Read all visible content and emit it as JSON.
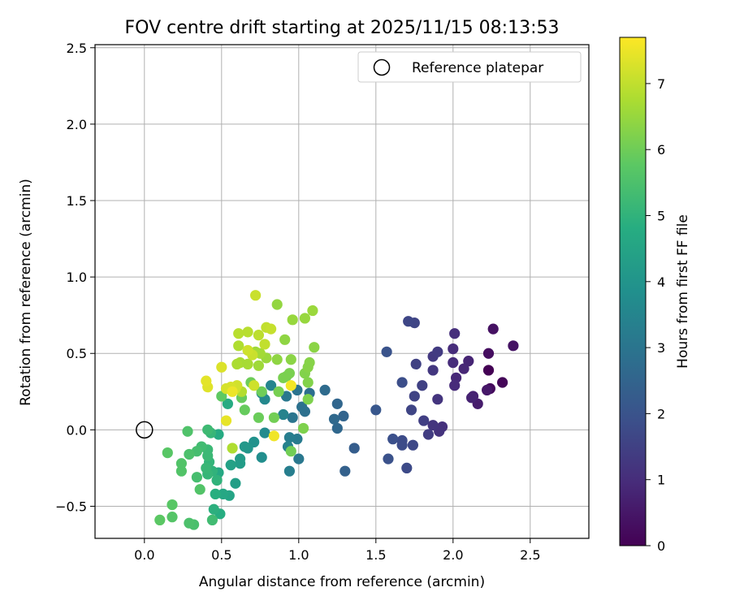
{
  "chart_data": {
    "type": "scatter",
    "title": "FOV centre drift starting at 2025/11/15 08:13:53",
    "xlabel": "Angular distance from reference (arcmin)",
    "ylabel": "Rotation from reference (arcmin)",
    "xlim": [
      -0.32,
      2.88
    ],
    "ylim": [
      -0.71,
      2.52
    ],
    "xticks": [
      0.0,
      0.5,
      1.0,
      1.5,
      2.0,
      2.5
    ],
    "xtick_labels": [
      "0.0",
      "0.5",
      "1.0",
      "1.5",
      "2.0",
      "2.5"
    ],
    "yticks": [
      -0.5,
      0.0,
      0.5,
      1.0,
      1.5,
      2.0,
      2.5
    ],
    "ytick_labels": [
      "−0.5",
      "0.0",
      "0.5",
      "1.0",
      "1.5",
      "2.0",
      "2.5"
    ],
    "grid": true,
    "legend": {
      "position": "top-right",
      "entries": [
        "Reference platepar"
      ]
    },
    "reference_point": {
      "x": 0.0,
      "y": 0.0,
      "label": "Reference platepar"
    },
    "colorbar": {
      "label": "Hours from first FF file",
      "range": [
        0,
        7.7
      ],
      "ticks": [
        0,
        1,
        2,
        3,
        4,
        5,
        6,
        7
      ],
      "tick_labels": [
        "0",
        "1",
        "2",
        "3",
        "4",
        "5",
        "6",
        "7"
      ],
      "colormap": "viridis"
    },
    "points": [
      {
        "x": 2.23,
        "y": 0.39,
        "h": 0.0
      },
      {
        "x": 2.32,
        "y": 0.31,
        "h": 0.1
      },
      {
        "x": 2.24,
        "y": 0.27,
        "h": 0.2
      },
      {
        "x": 2.23,
        "y": 0.5,
        "h": 0.3
      },
      {
        "x": 2.26,
        "y": 0.66,
        "h": 0.35
      },
      {
        "x": 2.39,
        "y": 0.55,
        "h": 0.4
      },
      {
        "x": 2.22,
        "y": 0.26,
        "h": 0.5
      },
      {
        "x": 2.16,
        "y": 0.17,
        "h": 0.6
      },
      {
        "x": 2.13,
        "y": 0.22,
        "h": 0.7
      },
      {
        "x": 2.12,
        "y": 0.21,
        "h": 0.75
      },
      {
        "x": 2.1,
        "y": 0.45,
        "h": 0.8
      },
      {
        "x": 2.07,
        "y": 0.4,
        "h": 0.85
      },
      {
        "x": 2.02,
        "y": 0.34,
        "h": 0.9
      },
      {
        "x": 2.01,
        "y": 0.29,
        "h": 0.95
      },
      {
        "x": 2.0,
        "y": 0.44,
        "h": 1.0
      },
      {
        "x": 2.0,
        "y": 0.53,
        "h": 1.0
      },
      {
        "x": 2.01,
        "y": 0.63,
        "h": 1.05
      },
      {
        "x": 1.93,
        "y": 0.02,
        "h": 1.1
      },
      {
        "x": 1.91,
        "y": -0.01,
        "h": 1.15
      },
      {
        "x": 1.87,
        "y": 0.03,
        "h": 1.2
      },
      {
        "x": 1.9,
        "y": 0.2,
        "h": 1.2
      },
      {
        "x": 1.87,
        "y": 0.39,
        "h": 1.25
      },
      {
        "x": 1.87,
        "y": 0.48,
        "h": 1.3
      },
      {
        "x": 1.9,
        "y": 0.51,
        "h": 1.35
      },
      {
        "x": 1.84,
        "y": -0.03,
        "h": 1.4
      },
      {
        "x": 1.81,
        "y": 0.06,
        "h": 1.45
      },
      {
        "x": 1.8,
        "y": 0.29,
        "h": 1.5
      },
      {
        "x": 1.76,
        "y": 0.43,
        "h": 1.5
      },
      {
        "x": 1.75,
        "y": 0.22,
        "h": 1.55
      },
      {
        "x": 1.73,
        "y": 0.13,
        "h": 1.6
      },
      {
        "x": 1.75,
        "y": 0.7,
        "h": 1.6
      },
      {
        "x": 1.71,
        "y": 0.71,
        "h": 1.65
      },
      {
        "x": 1.74,
        "y": -0.1,
        "h": 1.7
      },
      {
        "x": 1.7,
        "y": -0.25,
        "h": 1.75
      },
      {
        "x": 1.67,
        "y": -0.07,
        "h": 1.8
      },
      {
        "x": 1.67,
        "y": -0.1,
        "h": 1.8
      },
      {
        "x": 1.67,
        "y": 0.31,
        "h": 1.85
      },
      {
        "x": 1.61,
        "y": -0.06,
        "h": 1.9
      },
      {
        "x": 1.58,
        "y": -0.19,
        "h": 1.95
      },
      {
        "x": 1.57,
        "y": 0.51,
        "h": 2.0
      },
      {
        "x": 1.5,
        "y": 0.13,
        "h": 2.1
      },
      {
        "x": 1.36,
        "y": -0.12,
        "h": 2.3
      },
      {
        "x": 1.3,
        "y": -0.27,
        "h": 2.4
      },
      {
        "x": 1.29,
        "y": 0.09,
        "h": 2.5
      },
      {
        "x": 1.25,
        "y": 0.17,
        "h": 2.55
      },
      {
        "x": 1.25,
        "y": 0.01,
        "h": 2.6
      },
      {
        "x": 1.23,
        "y": 0.07,
        "h": 2.65
      },
      {
        "x": 1.17,
        "y": 0.26,
        "h": 2.7
      },
      {
        "x": 1.07,
        "y": 0.24,
        "h": 2.8
      },
      {
        "x": 1.04,
        "y": 0.12,
        "h": 2.85
      },
      {
        "x": 1.02,
        "y": 0.15,
        "h": 2.9
      },
      {
        "x": 0.99,
        "y": 0.26,
        "h": 2.95
      },
      {
        "x": 0.96,
        "y": 0.08,
        "h": 3.0
      },
      {
        "x": 0.92,
        "y": 0.22,
        "h": 3.1
      },
      {
        "x": 1.0,
        "y": -0.19,
        "h": 3.1
      },
      {
        "x": 0.99,
        "y": -0.06,
        "h": 3.2
      },
      {
        "x": 0.94,
        "y": -0.27,
        "h": 3.3
      },
      {
        "x": 0.94,
        "y": -0.05,
        "h": 3.3
      },
      {
        "x": 0.93,
        "y": -0.11,
        "h": 3.4
      },
      {
        "x": 0.9,
        "y": 0.1,
        "h": 3.45
      },
      {
        "x": 0.82,
        "y": 0.29,
        "h": 3.5
      },
      {
        "x": 0.78,
        "y": 0.2,
        "h": 3.6
      },
      {
        "x": 0.76,
        "y": 0.24,
        "h": 3.65
      },
      {
        "x": 0.78,
        "y": -0.02,
        "h": 3.7
      },
      {
        "x": 0.76,
        "y": -0.18,
        "h": 3.8
      },
      {
        "x": 0.71,
        "y": -0.08,
        "h": 3.9
      },
      {
        "x": 0.67,
        "y": -0.12,
        "h": 4.0
      },
      {
        "x": 0.65,
        "y": -0.11,
        "h": 4.1
      },
      {
        "x": 0.62,
        "y": -0.19,
        "h": 4.2
      },
      {
        "x": 0.62,
        "y": -0.22,
        "h": 4.25
      },
      {
        "x": 0.59,
        "y": -0.35,
        "h": 4.3
      },
      {
        "x": 0.56,
        "y": -0.23,
        "h": 4.4
      },
      {
        "x": 0.55,
        "y": -0.43,
        "h": 4.5
      },
      {
        "x": 0.51,
        "y": -0.42,
        "h": 4.6
      },
      {
        "x": 0.48,
        "y": -0.28,
        "h": 4.65
      },
      {
        "x": 0.48,
        "y": -0.03,
        "h": 4.7
      },
      {
        "x": 0.54,
        "y": 0.17,
        "h": 4.75
      },
      {
        "x": 0.49,
        "y": -0.55,
        "h": 4.8
      },
      {
        "x": 0.46,
        "y": -0.42,
        "h": 4.85
      },
      {
        "x": 0.45,
        "y": -0.52,
        "h": 4.9
      },
      {
        "x": 0.47,
        "y": -0.33,
        "h": 5.0
      },
      {
        "x": 0.44,
        "y": -0.27,
        "h": 5.0
      },
      {
        "x": 0.42,
        "y": -0.21,
        "h": 5.05
      },
      {
        "x": 0.43,
        "y": -0.02,
        "h": 5.1
      },
      {
        "x": 0.41,
        "y": -0.29,
        "h": 5.1
      },
      {
        "x": 0.4,
        "y": -0.25,
        "h": 5.15
      },
      {
        "x": 0.41,
        "y": -0.13,
        "h": 5.2
      },
      {
        "x": 0.41,
        "y": -0.17,
        "h": 5.2
      },
      {
        "x": 0.41,
        "y": 0.0,
        "h": 5.25
      },
      {
        "x": 0.44,
        "y": -0.59,
        "h": 5.3
      },
      {
        "x": 0.37,
        "y": -0.11,
        "h": 5.3
      },
      {
        "x": 0.34,
        "y": -0.14,
        "h": 5.4
      },
      {
        "x": 0.34,
        "y": -0.31,
        "h": 5.4
      },
      {
        "x": 0.32,
        "y": -0.62,
        "h": 5.45
      },
      {
        "x": 0.29,
        "y": -0.61,
        "h": 5.5
      },
      {
        "x": 0.29,
        "y": -0.16,
        "h": 5.5
      },
      {
        "x": 0.28,
        "y": -0.01,
        "h": 5.55
      },
      {
        "x": 0.24,
        "y": -0.27,
        "h": 5.6
      },
      {
        "x": 0.24,
        "y": -0.22,
        "h": 5.6
      },
      {
        "x": 0.18,
        "y": -0.57,
        "h": 5.65
      },
      {
        "x": 0.18,
        "y": -0.49,
        "h": 5.7
      },
      {
        "x": 0.15,
        "y": -0.15,
        "h": 5.7
      },
      {
        "x": 0.1,
        "y": -0.59,
        "h": 5.75
      },
      {
        "x": 0.36,
        "y": -0.39,
        "h": 5.6
      },
      {
        "x": 0.5,
        "y": 0.22,
        "h": 5.8
      },
      {
        "x": 0.65,
        "y": 0.13,
        "h": 5.9
      },
      {
        "x": 0.63,
        "y": 0.21,
        "h": 5.9
      },
      {
        "x": 0.74,
        "y": 0.08,
        "h": 5.95
      },
      {
        "x": 0.69,
        "y": 0.31,
        "h": 6.0
      },
      {
        "x": 0.76,
        "y": 0.25,
        "h": 6.0
      },
      {
        "x": 0.84,
        "y": 0.08,
        "h": 6.05
      },
      {
        "x": 0.95,
        "y": -0.14,
        "h": 6.05
      },
      {
        "x": 0.87,
        "y": 0.25,
        "h": 6.1
      },
      {
        "x": 0.92,
        "y": 0.35,
        "h": 6.1
      },
      {
        "x": 0.94,
        "y": 0.37,
        "h": 6.15
      },
      {
        "x": 0.9,
        "y": 0.34,
        "h": 6.15
      },
      {
        "x": 1.03,
        "y": 0.01,
        "h": 6.2
      },
      {
        "x": 1.06,
        "y": 0.2,
        "h": 6.2
      },
      {
        "x": 1.06,
        "y": 0.31,
        "h": 6.25
      },
      {
        "x": 1.04,
        "y": 0.37,
        "h": 6.25
      },
      {
        "x": 1.06,
        "y": 0.41,
        "h": 6.3
      },
      {
        "x": 1.07,
        "y": 0.44,
        "h": 6.3
      },
      {
        "x": 1.1,
        "y": 0.54,
        "h": 6.35
      },
      {
        "x": 0.95,
        "y": 0.46,
        "h": 6.35
      },
      {
        "x": 0.91,
        "y": 0.59,
        "h": 6.4
      },
      {
        "x": 0.86,
        "y": 0.46,
        "h": 6.4
      },
      {
        "x": 0.86,
        "y": 0.82,
        "h": 6.45
      },
      {
        "x": 0.96,
        "y": 0.72,
        "h": 6.5
      },
      {
        "x": 1.04,
        "y": 0.73,
        "h": 6.5
      },
      {
        "x": 1.09,
        "y": 0.78,
        "h": 6.55
      },
      {
        "x": 0.79,
        "y": 0.47,
        "h": 6.55
      },
      {
        "x": 0.74,
        "y": 0.42,
        "h": 6.6
      },
      {
        "x": 0.72,
        "y": 0.51,
        "h": 6.6
      },
      {
        "x": 0.75,
        "y": 0.5,
        "h": 6.65
      },
      {
        "x": 0.67,
        "y": 0.43,
        "h": 6.7
      },
      {
        "x": 0.62,
        "y": 0.44,
        "h": 6.7
      },
      {
        "x": 0.6,
        "y": 0.43,
        "h": 6.75
      },
      {
        "x": 0.61,
        "y": 0.55,
        "h": 6.8
      },
      {
        "x": 0.57,
        "y": -0.12,
        "h": 6.8
      },
      {
        "x": 0.63,
        "y": 0.25,
        "h": 6.85
      },
      {
        "x": 0.61,
        "y": 0.63,
        "h": 6.9
      },
      {
        "x": 0.67,
        "y": 0.64,
        "h": 6.9
      },
      {
        "x": 0.74,
        "y": 0.62,
        "h": 6.95
      },
      {
        "x": 0.78,
        "y": 0.56,
        "h": 7.0
      },
      {
        "x": 0.79,
        "y": 0.67,
        "h": 7.0
      },
      {
        "x": 0.82,
        "y": 0.66,
        "h": 7.05
      },
      {
        "x": 0.72,
        "y": 0.88,
        "h": 7.1
      },
      {
        "x": 0.7,
        "y": 0.49,
        "h": 7.1
      },
      {
        "x": 0.71,
        "y": 0.29,
        "h": 7.15
      },
      {
        "x": 0.67,
        "y": 0.52,
        "h": 7.15
      },
      {
        "x": 0.6,
        "y": 0.29,
        "h": 7.2
      },
      {
        "x": 0.59,
        "y": 0.27,
        "h": 7.2
      },
      {
        "x": 0.56,
        "y": 0.28,
        "h": 7.25
      },
      {
        "x": 0.53,
        "y": 0.27,
        "h": 7.25
      },
      {
        "x": 0.5,
        "y": 0.41,
        "h": 7.3
      },
      {
        "x": 0.41,
        "y": 0.28,
        "h": 7.35
      },
      {
        "x": 0.4,
        "y": 0.32,
        "h": 7.4
      },
      {
        "x": 0.53,
        "y": 0.06,
        "h": 7.45
      },
      {
        "x": 0.57,
        "y": 0.25,
        "h": 7.5
      },
      {
        "x": 0.84,
        "y": -0.04,
        "h": 7.55
      },
      {
        "x": 0.95,
        "y": 0.29,
        "h": 7.6
      }
    ]
  }
}
